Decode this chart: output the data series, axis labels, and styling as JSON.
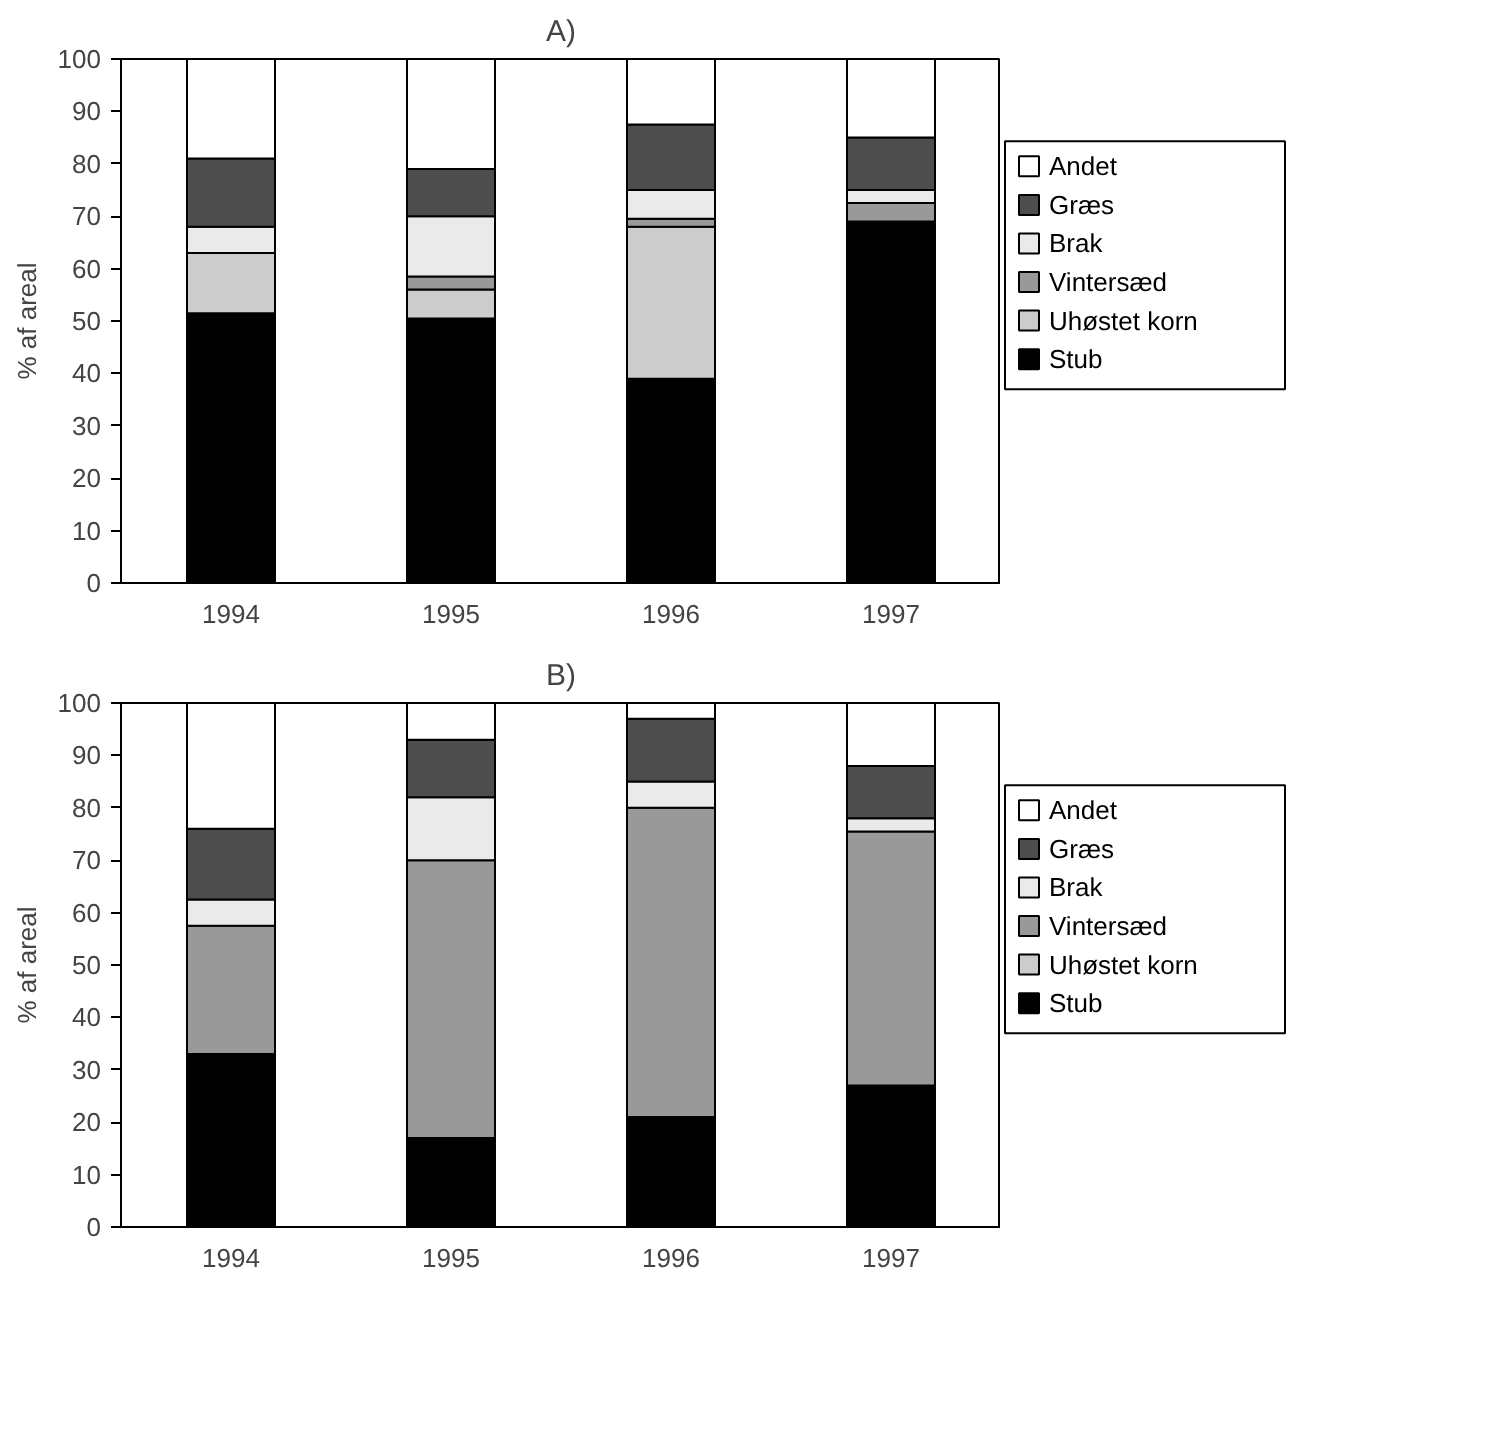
{
  "chart_data": [
    {
      "type": "bar",
      "title": "A)",
      "ylabel": "% af areal",
      "categories": [
        "1994",
        "1995",
        "1996",
        "1997"
      ],
      "stacked": true,
      "ylim": [
        0,
        100
      ],
      "yticks": [
        0,
        10,
        20,
        30,
        40,
        50,
        60,
        70,
        80,
        90,
        100
      ],
      "grid": false,
      "legend": "right",
      "series": [
        {
          "name": "Stub",
          "color": "#000000",
          "values": [
            51.5,
            50.5,
            39,
            69
          ]
        },
        {
          "name": "Uhøstet korn",
          "color": "#cccccc",
          "values": [
            11.5,
            5.5,
            29,
            0
          ]
        },
        {
          "name": "Vintersæd",
          "color": "#999999",
          "values": [
            0,
            2.5,
            1.5,
            3.5
          ]
        },
        {
          "name": "Brak",
          "color": "#eaeaea",
          "values": [
            5,
            11.5,
            5.5,
            2.5
          ]
        },
        {
          "name": "Græs",
          "color": "#4d4d4d",
          "values": [
            13,
            9,
            12.5,
            10
          ]
        },
        {
          "name": "Andet",
          "color": "#ffffff",
          "values": [
            19,
            21,
            12.5,
            15
          ]
        }
      ]
    },
    {
      "type": "bar",
      "title": "B)",
      "ylabel": "% af areal",
      "categories": [
        "1994",
        "1995",
        "1996",
        "1997"
      ],
      "stacked": true,
      "ylim": [
        0,
        100
      ],
      "yticks": [
        0,
        10,
        20,
        30,
        40,
        50,
        60,
        70,
        80,
        90,
        100
      ],
      "grid": false,
      "legend": "right",
      "series": [
        {
          "name": "Stub",
          "color": "#000000",
          "values": [
            33,
            17,
            21,
            27
          ]
        },
        {
          "name": "Uhøstet korn",
          "color": "#cccccc",
          "values": [
            0,
            0,
            0,
            0
          ]
        },
        {
          "name": "Vintersæd",
          "color": "#999999",
          "values": [
            24.5,
            53,
            59,
            48.5
          ]
        },
        {
          "name": "Brak",
          "color": "#eaeaea",
          "values": [
            5,
            12,
            5,
            2.5
          ]
        },
        {
          "name": "Græs",
          "color": "#4d4d4d",
          "values": [
            13.5,
            11,
            12,
            10
          ]
        },
        {
          "name": "Andet",
          "color": "#ffffff",
          "values": [
            24,
            7,
            3,
            12
          ]
        }
      ]
    }
  ]
}
